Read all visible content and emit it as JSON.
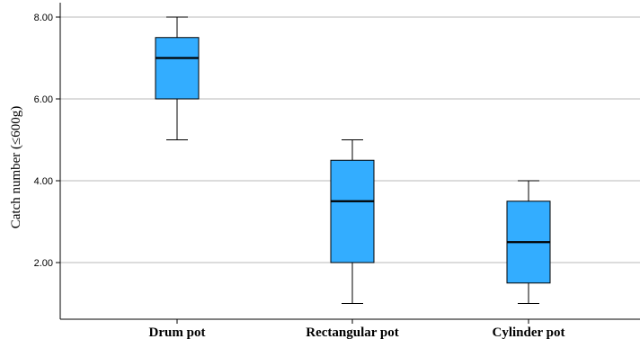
{
  "chart_data": {
    "type": "box",
    "ylabel": "Catch number (≤600g)",
    "xlabel": "",
    "ylim": [
      0.5,
      8.0
    ],
    "y_ticks": [
      2.0,
      4.0,
      6.0,
      8.0
    ],
    "y_tick_labels": [
      "2.00",
      "4.00",
      "6.00",
      "8.00"
    ],
    "grid": "horizontal",
    "box_color": "#33adff",
    "categories": [
      "Drum pot",
      "Rectangular pot",
      "Cylinder pot"
    ],
    "boxes": [
      {
        "category": "Drum pot",
        "min": 5.0,
        "q1": 6.0,
        "median": 7.0,
        "q3": 7.5,
        "max": 8.0
      },
      {
        "category": "Rectangular pot",
        "min": 1.0,
        "q1": 2.0,
        "median": 3.5,
        "q3": 4.5,
        "max": 5.0
      },
      {
        "category": "Cylinder pot",
        "min": 1.0,
        "q1": 1.5,
        "median": 2.5,
        "q3": 3.5,
        "max": 4.0
      }
    ]
  }
}
